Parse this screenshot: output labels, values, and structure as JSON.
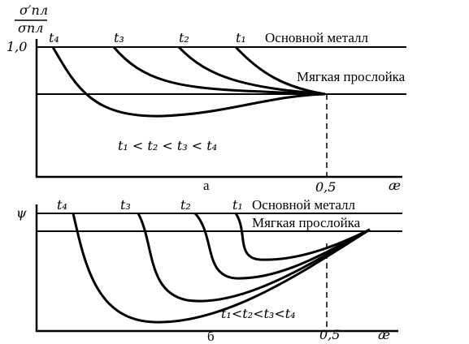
{
  "panels": [
    {
      "y_label_top": "σ′пл",
      "y_label_bottom": "σпл",
      "y_tick": "1,0",
      "curve_labels": [
        "t₄",
        "t₃",
        "t₂",
        "t₁"
      ],
      "line_labels": [
        "Основной металл",
        "Мягкая прослойка"
      ],
      "relation": "t₁ < t₂ < t₃ < t₄",
      "x_tick": "0,5",
      "x_label": "æ",
      "caption": "а"
    },
    {
      "y_label": "ψ",
      "curve_labels": [
        "t₄",
        "t₃",
        "t₂",
        "t₁"
      ],
      "line_labels": [
        "Основной металл",
        "Мягкая прослойка"
      ],
      "relation": "t₁<t₂<t₃<t₄",
      "x_tick": "0,5",
      "x_label": "æ",
      "caption": "б"
    }
  ]
}
